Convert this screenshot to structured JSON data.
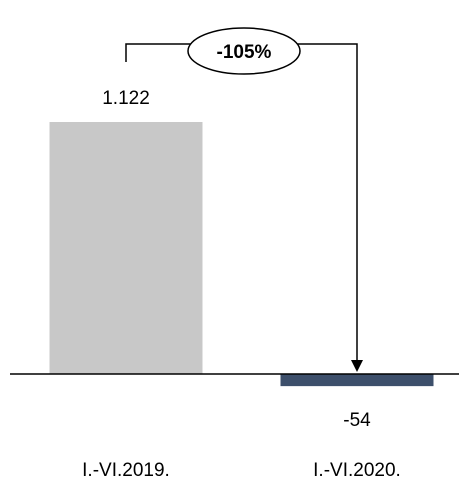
{
  "chart_data": {
    "type": "bar",
    "categories": [
      "I.-VI.2019.",
      "I.-VI.2020."
    ],
    "values": [
      1122,
      -54
    ],
    "value_labels": [
      "1.122",
      "-54"
    ],
    "colors": [
      "#c8c8c8",
      "#3d4f6b"
    ],
    "axis_color": "#000000",
    "change_annotation": {
      "label": "-105%",
      "from": "I.-VI.2019.",
      "to": "I.-VI.2020."
    },
    "title": "",
    "xlabel": "",
    "ylabel": "",
    "grid": false,
    "legend": "none"
  }
}
